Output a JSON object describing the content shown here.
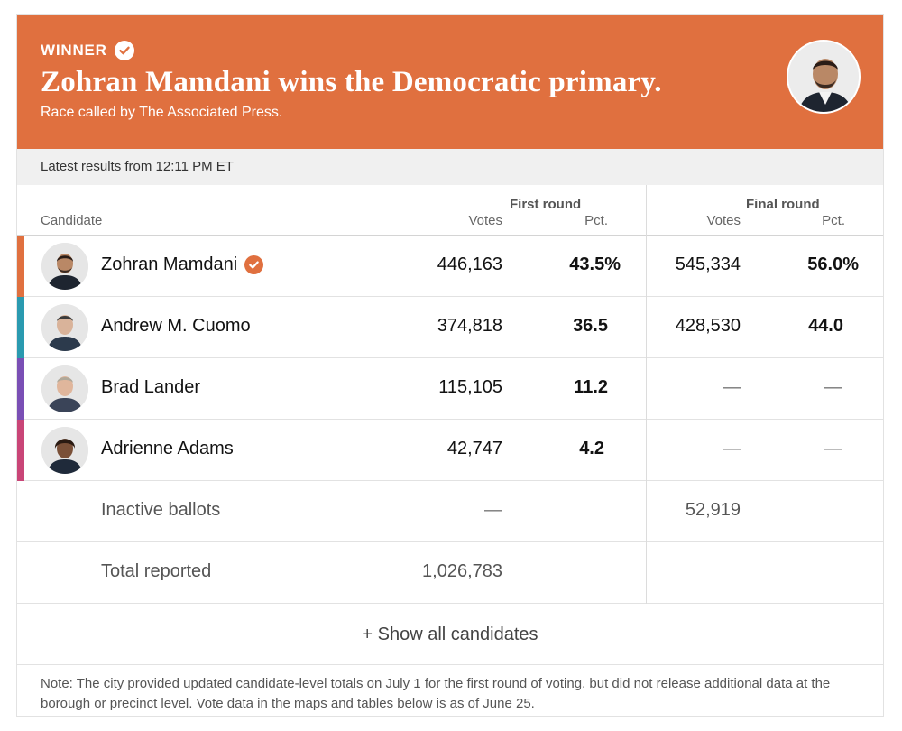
{
  "banner": {
    "winner_label": "WINNER",
    "headline": "Zohran Mamdani wins the Democratic primary.",
    "subline": "Race called by The Associated Press.",
    "color": "#e0703f"
  },
  "latest": "Latest results from 12:11 PM ET",
  "header": {
    "candidate": "Candidate",
    "first_round": "First round",
    "final_round": "Final round",
    "votes": "Votes",
    "pct": "Pct."
  },
  "candidates": [
    {
      "name": "Zohran Mamdani",
      "color": "#e0703f",
      "first_votes": "446,163",
      "first_pct": "43.5%",
      "final_votes": "545,334",
      "final_pct": "56.0%"
    },
    {
      "name": "Andrew M. Cuomo",
      "color": "#2a9ab0",
      "first_votes": "374,818",
      "first_pct": "36.5",
      "final_votes": "428,530",
      "final_pct": "44.0"
    },
    {
      "name": "Brad Lander",
      "color": "#7a4fb5",
      "first_votes": "115,105",
      "first_pct": "11.2",
      "final_votes": "—",
      "final_pct": "—"
    },
    {
      "name": "Adrienne Adams",
      "color": "#c94577",
      "first_votes": "42,747",
      "first_pct": "4.2",
      "final_votes": "—",
      "final_pct": "—"
    }
  ],
  "inactive": {
    "label": "Inactive ballots",
    "first_votes": "—",
    "final_votes": "52,919"
  },
  "total": {
    "label": "Total reported",
    "first_votes": "1,026,783"
  },
  "show_all": "+ Show all candidates",
  "note": "Note: The city provided updated candidate-level totals on July 1 for the first round of voting, but did not release additional data at the borough or precinct level. Vote data in the maps and tables below is as of June 25."
}
